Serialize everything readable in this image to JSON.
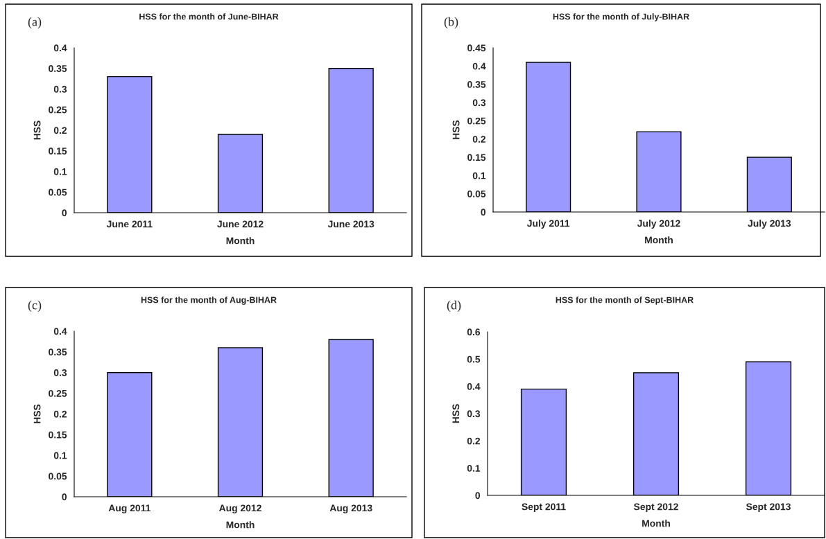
{
  "chart_data": [
    {
      "type": "bar",
      "title": "HSS for the month of June-BIHAR",
      "xlabel": "Month",
      "ylabel": "HSS",
      "annotations": [
        "(a)"
      ],
      "categories": [
        "June 2011",
        "June 2012",
        "June 2013"
      ],
      "values": [
        0.33,
        0.19,
        0.35
      ],
      "color": "#9999ff",
      "ylim": [
        0,
        0.4
      ],
      "yticks": [
        0,
        0.05,
        0.1,
        0.15,
        0.2,
        0.25,
        0.3,
        0.35,
        0.4
      ],
      "grid": false,
      "legend": false
    },
    {
      "type": "bar",
      "title": "HSS for the month of July-BIHAR",
      "xlabel": "Month",
      "ylabel": "HSS",
      "annotations": [
        "(b)"
      ],
      "categories": [
        "July 2011",
        "July 2012",
        "July 2013"
      ],
      "values": [
        0.41,
        0.22,
        0.15
      ],
      "color": "#9999ff",
      "ylim": [
        0,
        0.45
      ],
      "yticks": [
        0,
        0.05,
        0.1,
        0.15,
        0.2,
        0.25,
        0.3,
        0.35,
        0.4,
        0.45
      ],
      "grid": false,
      "legend": false
    },
    {
      "type": "bar",
      "title": "HSS for the month of Aug-BIHAR",
      "xlabel": "Month",
      "ylabel": "HSS",
      "annotations": [
        "(c)"
      ],
      "categories": [
        "Aug 2011",
        "Aug 2012",
        "Aug 2013"
      ],
      "values": [
        0.3,
        0.36,
        0.38
      ],
      "color": "#9999ff",
      "ylim": [
        0,
        0.4
      ],
      "yticks": [
        0,
        0.05,
        0.1,
        0.15,
        0.2,
        0.25,
        0.3,
        0.35,
        0.4
      ],
      "grid": false,
      "legend": false
    },
    {
      "type": "bar",
      "title": "HSS for the month of Sept-BIHAR",
      "xlabel": "Month",
      "ylabel": "HSS",
      "annotations": [
        "(d)"
      ],
      "categories": [
        "Sept 2011",
        "Sept 2012",
        "Sept 2013"
      ],
      "values": [
        0.39,
        0.45,
        0.49
      ],
      "color": "#9999ff",
      "ylim": [
        0,
        0.6
      ],
      "yticks": [
        0,
        0.1,
        0.2,
        0.3,
        0.4,
        0.5,
        0.6
      ],
      "grid": false,
      "legend": false
    }
  ]
}
